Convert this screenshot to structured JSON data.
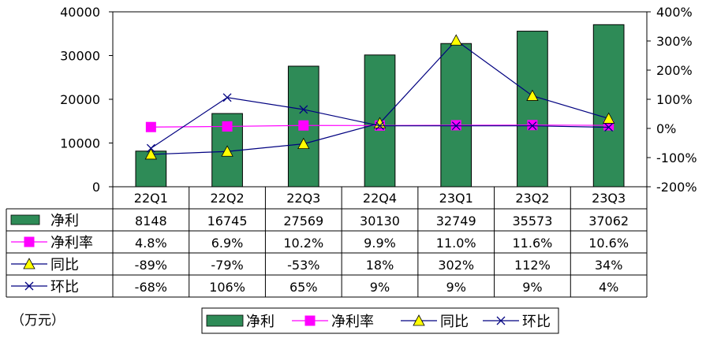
{
  "chart_data": {
    "type": "bar",
    "categories": [
      "22Q1",
      "22Q2",
      "22Q3",
      "22Q4",
      "23Q1",
      "23Q2",
      "23Q3"
    ],
    "left_axis": {
      "min": 0,
      "max": 40000,
      "ticks": [
        "0",
        "10000",
        "20000",
        "30000",
        "40000"
      ]
    },
    "right_axis": {
      "min": -200,
      "max": 400,
      "ticks": [
        "-200%",
        "-100%",
        "0%",
        "100%",
        "200%",
        "300%",
        "400%"
      ]
    },
    "series": [
      {
        "name": "净利",
        "kind": "bar",
        "axis": "left",
        "color": "#2e8b57",
        "values": [
          8148,
          16745,
          27569,
          30130,
          32749,
          35573,
          37062
        ],
        "labels": [
          "8148",
          "16745",
          "27569",
          "30130",
          "32749",
          "35573",
          "37062"
        ]
      },
      {
        "name": "净利率",
        "kind": "line",
        "axis": "right",
        "color": "#ff00ff",
        "marker": "square",
        "values": [
          4.8,
          6.9,
          10.2,
          9.9,
          11.0,
          11.6,
          10.6
        ],
        "labels": [
          "4.8%",
          "6.9%",
          "10.2%",
          "9.9%",
          "11.0%",
          "11.6%",
          "10.6%"
        ]
      },
      {
        "name": "同比",
        "kind": "line",
        "axis": "right",
        "color": "#000080",
        "marker": "triangle",
        "values": [
          -89,
          -79,
          -53,
          18,
          302,
          112,
          34
        ],
        "labels": [
          "-89%",
          "-79%",
          "-53%",
          "18%",
          "302%",
          "112%",
          "34%"
        ]
      },
      {
        "name": "环比",
        "kind": "line",
        "axis": "right",
        "color": "#000080",
        "marker": "x",
        "values": [
          -68,
          106,
          65,
          9,
          9,
          9,
          4
        ],
        "labels": [
          "-68%",
          "106%",
          "65%",
          "9%",
          "9%",
          "9%",
          "4%"
        ]
      }
    ],
    "unit_label": "（万元）"
  }
}
